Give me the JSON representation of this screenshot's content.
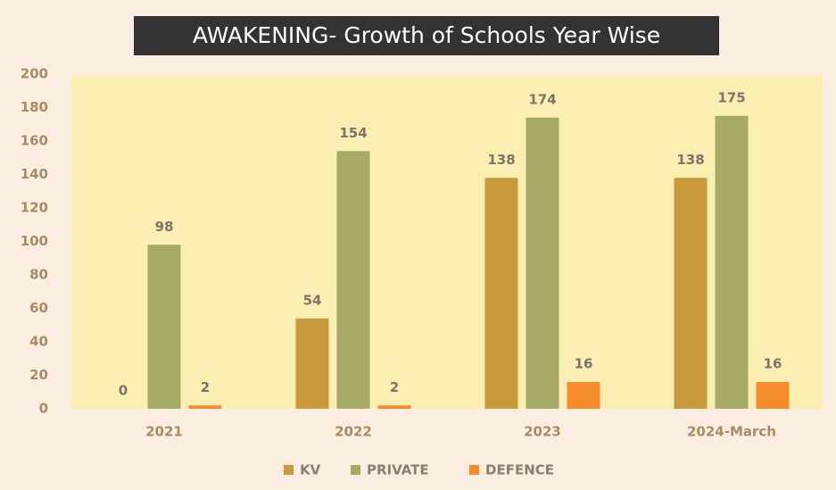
{
  "chart_data": {
    "type": "bar",
    "title": "AWAKENING- Growth of Schools Year Wise",
    "categories": [
      "2021",
      "2022",
      "2023",
      "2024-March"
    ],
    "series": [
      {
        "name": "KV",
        "color": "#c99b3c",
        "values": [
          0,
          54,
          138,
          138
        ]
      },
      {
        "name": "PRIVATE",
        "color": "#a7a967",
        "values": [
          98,
          154,
          174,
          175
        ]
      },
      {
        "name": "DEFENCE",
        "color": "#f68b2c",
        "values": [
          2,
          2,
          16,
          16
        ]
      }
    ],
    "ylim": [
      0,
      200
    ],
    "yticks": [
      0,
      20,
      40,
      60,
      80,
      100,
      120,
      140,
      160,
      180,
      200
    ],
    "legend": "bottom"
  }
}
